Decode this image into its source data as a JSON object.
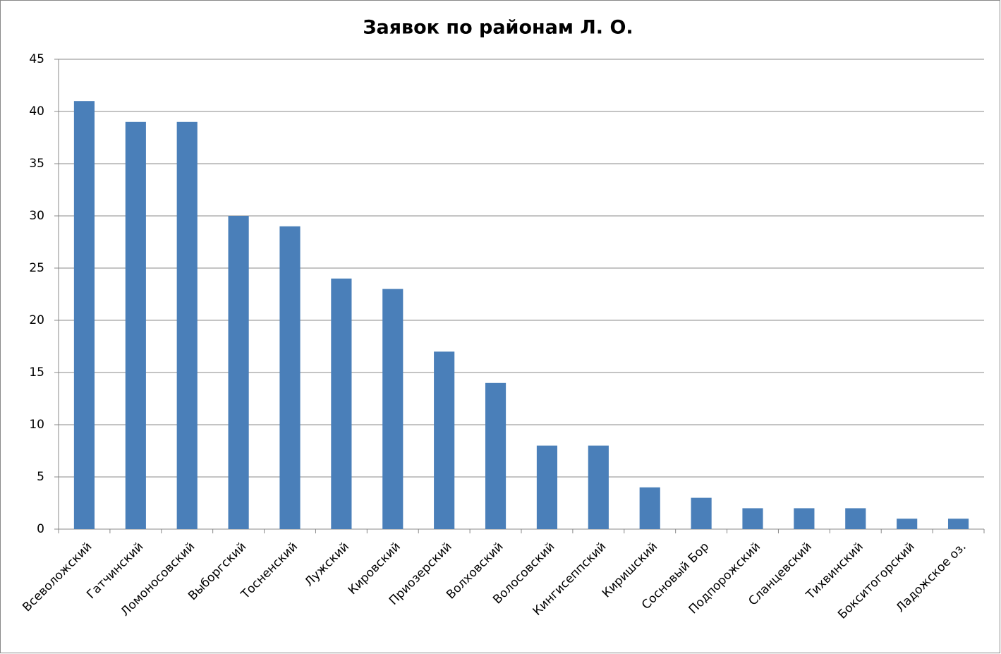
{
  "chart_data": {
    "type": "bar",
    "title": "Заявок по районам Л. О.",
    "categories": [
      "Всеволожский",
      "Гатчинский",
      "Ломоносовский",
      "Выборгский",
      "Тосненский",
      "Лужский",
      "Кировский",
      "Приозерский",
      "Волховский",
      "Волосовский",
      "Кингисеппский",
      "Киришский",
      "Сосновый Бор",
      "Подпорожский",
      "Сланцевский",
      "Тихвинский",
      "Бокситогорский",
      "Ладожское оз."
    ],
    "values": [
      41,
      39,
      39,
      30,
      29,
      24,
      23,
      17,
      14,
      8,
      8,
      4,
      3,
      2,
      2,
      2,
      1,
      1
    ],
    "color": "#4a7fb9",
    "ylim": [
      0,
      45
    ],
    "yticks": [
      0,
      5,
      10,
      15,
      20,
      25,
      30,
      35,
      40,
      45
    ],
    "grid": true
  }
}
